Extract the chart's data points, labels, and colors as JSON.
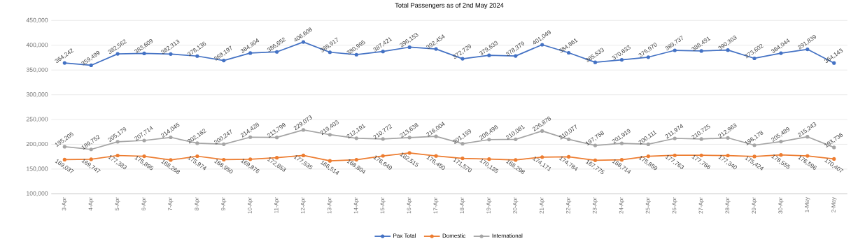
{
  "chart_data": {
    "type": "line",
    "title": "Total Passengers as of 2nd May 2024",
    "categories": [
      "3-Apr",
      "4-Apr",
      "5-Apr",
      "6-Apr",
      "7-Apr",
      "8-Apr",
      "9-Apr",
      "10-Apr",
      "11-Apr",
      "12-Apr",
      "13-Apr",
      "14-Apr",
      "15-Apr",
      "16-Apr",
      "17-Apr",
      "18-Apr",
      "19-Apr",
      "20-Apr",
      "21-Apr",
      "22-Apr",
      "23-Apr",
      "24-Apr",
      "25-Apr",
      "26-Apr",
      "27-Apr",
      "28-Apr",
      "29-Apr",
      "30-Apr",
      "1-May",
      "2-May"
    ],
    "series": [
      {
        "name": "Pax Total",
        "color": "#4472c4",
        "values": [
          364242,
          359499,
          382562,
          383609,
          382313,
          378136,
          369197,
          384304,
          386652,
          406608,
          385917,
          380995,
          387421,
          396153,
          392454,
          372729,
          379633,
          378379,
          401049,
          384861,
          365533,
          370633,
          375970,
          389737,
          388491,
          390303,
          373602,
          384044,
          391839,
          364143
        ],
        "value_labels": [
          "364,242",
          "359,499",
          "382,562",
          "383,609",
          "382,313",
          "378,136",
          "369,197",
          "384,304",
          "386,652",
          "406,608",
          "385,917",
          "380,995",
          "387,421",
          "396,153",
          "392,454",
          "372,729",
          "379,633",
          "378,379",
          "401,049",
          "384,861",
          "365,533",
          "370,633",
          "375,970",
          "389,737",
          "388,491",
          "390,303",
          "373,602",
          "384,044",
          "391,839",
          "364,143"
        ]
      },
      {
        "name": "Domestic",
        "color": "#ed7d31",
        "values": [
          169037,
          169747,
          177383,
          175895,
          168268,
          175974,
          168950,
          169876,
          172853,
          177535,
          166514,
          168804,
          176649,
          182515,
          176450,
          171570,
          170135,
          168298,
          174171,
          174784,
          167775,
          168714,
          175859,
          177763,
          177766,
          177340,
          175424,
          178555,
          176596,
          170407
        ],
        "value_labels": [
          "169,037",
          "169,747",
          "177,383",
          "175,895",
          "168,268",
          "175,974",
          "168,950",
          "169,876",
          "172,853",
          "177,535",
          "166,514",
          "168,804",
          "176,649",
          "182,515",
          "176,450",
          "171,570",
          "170,135",
          "168,298",
          "174,171",
          "174,784",
          "167,775",
          "168,714",
          "175,859",
          "177,763",
          "177,766",
          "177,340",
          "175,424",
          "178,555",
          "176,596",
          "170,407"
        ]
      },
      {
        "name": "International",
        "color": "#a5a5a5",
        "values": [
          195205,
          189752,
          205179,
          207714,
          214045,
          202162,
          200247,
          214428,
          213799,
          229073,
          219403,
          212191,
          210772,
          213638,
          216004,
          201159,
          209498,
          210081,
          226878,
          210077,
          197758,
          201919,
          200111,
          211974,
          210725,
          212963,
          198178,
          205489,
          215243,
          193736
        ],
        "value_labels": [
          "195,205",
          "189,752",
          "205,179",
          "207,714",
          "214,045",
          "202,162",
          "200,247",
          "214,428",
          "213,799",
          "229,073",
          "219,403",
          "212,191",
          "210,772",
          "213,638",
          "216,004",
          "201,159",
          "209,498",
          "210,081",
          "226,878",
          "210,077",
          "197,758",
          "201,919",
          "200,111",
          "211,974",
          "210,725",
          "212,963",
          "198,178",
          "205,489",
          "215,243",
          "193,736"
        ]
      }
    ],
    "ylim": [
      100000,
      450000
    ],
    "yticks": [
      {
        "value": 100000,
        "label": "100,000"
      },
      {
        "value": 150000,
        "label": "150,000"
      },
      {
        "value": 200000,
        "label": "200,000"
      },
      {
        "value": 250000,
        "label": "250,000"
      },
      {
        "value": 300000,
        "label": "300,000"
      },
      {
        "value": 350000,
        "label": "350,000"
      },
      {
        "value": 400000,
        "label": "400,000"
      },
      {
        "value": 450000,
        "label": "450,000"
      }
    ],
    "grid": "y",
    "legend": "bottom",
    "marker": "circle",
    "line_style": "solid"
  }
}
